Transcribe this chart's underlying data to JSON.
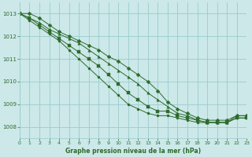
{
  "title": "Graphe pression niveau de la mer (hPa)",
  "bg_color": "#cce8e8",
  "grid_color": "#99cccc",
  "line_color": "#2d6b2d",
  "text_color": "#2d6b2d",
  "xlim": [
    0,
    23
  ],
  "ylim": [
    1007.5,
    1013.5
  ],
  "yticks": [
    1008,
    1009,
    1010,
    1011,
    1012,
    1013
  ],
  "xticks": [
    0,
    1,
    2,
    3,
    4,
    5,
    6,
    7,
    8,
    9,
    10,
    11,
    12,
    13,
    14,
    15,
    16,
    17,
    18,
    19,
    20,
    21,
    22,
    23
  ],
  "series": [
    {
      "x": [
        0,
        1,
        2,
        3,
        4,
        5,
        6,
        7,
        8,
        9,
        10,
        11,
        12,
        13,
        14,
        15,
        16,
        17,
        18,
        19,
        20,
        21,
        22,
        23
      ],
      "y": [
        1013.0,
        1013.0,
        1012.8,
        1012.5,
        1012.2,
        1012.0,
        1011.8,
        1011.6,
        1011.4,
        1011.1,
        1010.9,
        1010.6,
        1010.3,
        1010.0,
        1009.6,
        1009.1,
        1008.8,
        1008.6,
        1008.4,
        1008.3,
        1008.3,
        1008.3,
        1008.5,
        1008.5
      ],
      "marker": "D",
      "markersize": 2.5
    },
    {
      "x": [
        0,
        1,
        2,
        3,
        4,
        5,
        6,
        7,
        8,
        9,
        10,
        11,
        12,
        13,
        14,
        15,
        16,
        17,
        18,
        19,
        20,
        21,
        22,
        23
      ],
      "y": [
        1013.0,
        1012.8,
        1012.6,
        1012.3,
        1012.1,
        1011.9,
        1011.7,
        1011.4,
        1011.1,
        1010.8,
        1010.5,
        1010.2,
        1009.9,
        1009.5,
        1009.2,
        1008.9,
        1008.6,
        1008.5,
        1008.3,
        1008.2,
        1008.2,
        1008.2,
        1008.5,
        1008.5
      ],
      "marker": "^",
      "markersize": 2.5
    },
    {
      "x": [
        0,
        1,
        2,
        3,
        4,
        5,
        6,
        7,
        8,
        9,
        10,
        11,
        12,
        13,
        14,
        15,
        16,
        17,
        18,
        19,
        20,
        21,
        22,
        23
      ],
      "y": [
        1013.0,
        1012.8,
        1012.5,
        1012.2,
        1011.9,
        1011.6,
        1011.3,
        1011.0,
        1010.7,
        1010.3,
        1009.9,
        1009.5,
        1009.2,
        1008.9,
        1008.7,
        1008.7,
        1008.5,
        1008.4,
        1008.3,
        1008.2,
        1008.2,
        1008.2,
        1008.4,
        1008.4
      ],
      "marker": "s",
      "markersize": 2.2
    },
    {
      "x": [
        0,
        1,
        2,
        3,
        4,
        5,
        6,
        7,
        8,
        9,
        10,
        11,
        12,
        13,
        14,
        15,
        16,
        17,
        18,
        19,
        20,
        21,
        22,
        23
      ],
      "y": [
        1013.0,
        1012.7,
        1012.4,
        1012.1,
        1011.8,
        1011.4,
        1011.0,
        1010.6,
        1010.2,
        1009.8,
        1009.4,
        1009.0,
        1008.8,
        1008.6,
        1008.5,
        1008.5,
        1008.4,
        1008.3,
        1008.2,
        1008.2,
        1008.2,
        1008.2,
        1008.4,
        1008.4
      ],
      "marker": "o",
      "markersize": 2.2
    }
  ]
}
